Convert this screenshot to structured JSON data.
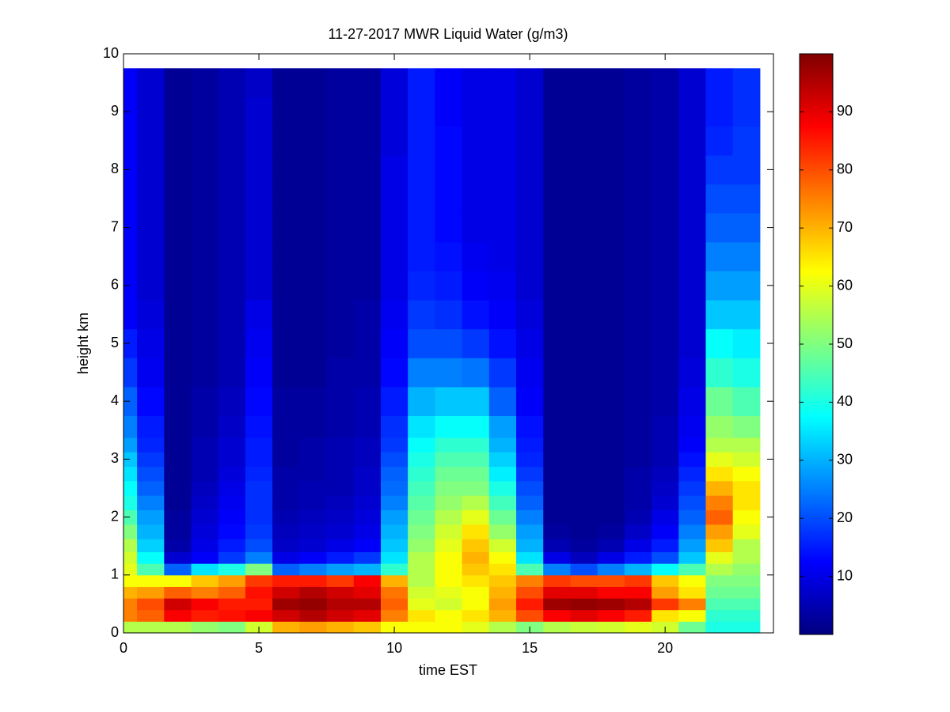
{
  "chart_data": {
    "type": "heatmap",
    "title": "11-27-2017 MWR Liquid Water (g/m3)",
    "xlabel": "time EST",
    "ylabel": "height km",
    "x": [
      0,
      1,
      2,
      3,
      4,
      5,
      6,
      7,
      8,
      9,
      10,
      11,
      12,
      13,
      14,
      15,
      16,
      17,
      18,
      19,
      20,
      21,
      22,
      23
    ],
    "y": [
      0.1,
      0.3,
      0.5,
      0.7,
      0.9,
      1.1,
      1.3,
      1.5,
      1.75,
      2,
      2.25,
      2.5,
      2.75,
      3,
      3.25,
      3.5,
      4,
      4.5,
      5,
      5.5,
      6,
      6.5,
      7,
      7.5,
      8,
      8.5,
      9,
      9.5
    ],
    "values": [
      [
        55,
        75,
        75,
        70,
        62,
        60,
        58,
        55,
        50,
        45,
        40,
        38,
        35,
        32,
        28,
        25,
        22,
        18,
        15,
        12,
        12,
        12,
        12,
        12,
        12,
        12,
        12,
        12
      ],
      [
        55,
        78,
        80,
        72,
        62,
        45,
        38,
        33,
        30,
        28,
        25,
        22,
        20,
        18,
        16,
        15,
        13,
        11,
        10,
        9,
        8,
        8,
        8,
        8,
        8,
        8,
        8,
        8
      ],
      [
        55,
        88,
        92,
        78,
        62,
        22,
        8,
        4,
        3,
        3,
        2,
        2,
        2,
        2,
        2,
        2,
        2,
        2,
        2,
        2,
        2,
        2,
        2,
        2,
        2,
        2,
        2,
        2
      ],
      [
        52,
        85,
        88,
        75,
        68,
        35,
        12,
        10,
        9,
        8,
        7,
        6,
        5,
        5,
        5,
        4,
        4,
        3,
        3,
        3,
        3,
        3,
        3,
        3,
        3,
        3,
        3,
        3
      ],
      [
        50,
        86,
        85,
        78,
        72,
        40,
        18,
        15,
        13,
        12,
        11,
        10,
        9,
        8,
        8,
        7,
        6,
        5,
        5,
        5,
        5,
        5,
        5,
        5,
        5,
        5,
        5,
        5
      ],
      [
        58,
        88,
        85,
        86,
        82,
        50,
        25,
        20,
        18,
        17,
        17,
        17,
        16,
        15,
        15,
        14,
        13,
        12,
        11,
        10,
        8,
        8,
        8,
        8,
        8,
        8,
        8,
        7
      ],
      [
        70,
        92,
        97,
        92,
        85,
        22,
        10,
        7,
        6,
        5,
        4,
        4,
        4,
        3,
        3,
        3,
        3,
        2,
        2,
        2,
        2,
        2,
        2,
        2,
        2,
        2,
        2,
        2
      ],
      [
        72,
        95,
        98,
        95,
        85,
        25,
        12,
        8,
        7,
        6,
        5,
        5,
        4,
        4,
        4,
        3,
        3,
        2,
        2,
        2,
        2,
        2,
        2,
        2,
        2,
        2,
        2,
        2
      ],
      [
        70,
        92,
        95,
        92,
        82,
        28,
        15,
        10,
        8,
        7,
        6,
        5,
        5,
        5,
        5,
        4,
        4,
        4,
        3,
        3,
        3,
        3,
        3,
        3,
        3,
        3,
        3,
        3
      ],
      [
        68,
        90,
        95,
        90,
        88,
        30,
        18,
        12,
        10,
        9,
        8,
        7,
        7,
        6,
        6,
        5,
        5,
        4,
        4,
        4,
        3,
        3,
        3,
        3,
        3,
        3,
        3,
        3
      ],
      [
        62,
        75,
        78,
        76,
        70,
        42,
        35,
        32,
        30,
        28,
        25,
        23,
        22,
        20,
        18,
        17,
        15,
        13,
        12,
        11,
        10,
        10,
        10,
        10,
        10,
        9,
        9,
        9
      ],
      [
        62,
        65,
        60,
        58,
        55,
        55,
        55,
        52,
        50,
        48,
        46,
        44,
        42,
        40,
        38,
        35,
        30,
        25,
        20,
        18,
        16,
        15,
        15,
        15,
        15,
        15,
        15,
        15
      ],
      [
        62,
        62,
        58,
        60,
        62,
        62,
        62,
        60,
        58,
        55,
        52,
        50,
        48,
        45,
        42,
        38,
        32,
        25,
        20,
        17,
        15,
        14,
        13,
        13,
        13,
        13,
        12,
        12
      ],
      [
        60,
        65,
        62,
        62,
        65,
        68,
        70,
        68,
        65,
        60,
        55,
        50,
        48,
        45,
        42,
        38,
        32,
        24,
        18,
        14,
        12,
        11,
        10,
        10,
        10,
        10,
        10,
        10
      ],
      [
        55,
        70,
        72,
        70,
        68,
        65,
        62,
        58,
        52,
        48,
        44,
        40,
        36,
        33,
        30,
        28,
        22,
        18,
        14,
        12,
        11,
        10,
        10,
        10,
        10,
        10,
        10,
        10
      ],
      [
        50,
        80,
        85,
        80,
        75,
        45,
        35,
        30,
        28,
        25,
        22,
        20,
        18,
        16,
        15,
        14,
        12,
        11,
        10,
        9,
        8,
        8,
        8,
        8,
        8,
        8,
        8,
        8
      ],
      [
        55,
        88,
        97,
        90,
        82,
        25,
        10,
        5,
        3,
        2,
        2,
        2,
        2,
        2,
        2,
        2,
        2,
        2,
        2,
        2,
        2,
        2,
        2,
        2,
        2,
        2,
        2,
        2
      ],
      [
        57,
        90,
        98,
        90,
        80,
        20,
        6,
        3,
        2,
        2,
        2,
        2,
        2,
        2,
        2,
        2,
        2,
        2,
        2,
        2,
        2,
        2,
        2,
        2,
        2,
        2,
        2,
        2
      ],
      [
        58,
        88,
        97,
        88,
        80,
        25,
        10,
        5,
        3,
        2,
        2,
        2,
        2,
        2,
        2,
        2,
        2,
        2,
        2,
        2,
        2,
        2,
        2,
        2,
        2,
        2,
        2,
        2
      ],
      [
        60,
        85,
        95,
        88,
        82,
        30,
        15,
        10,
        7,
        5,
        4,
        4,
        4,
        3,
        3,
        3,
        3,
        3,
        3,
        3,
        3,
        3,
        3,
        3,
        3,
        3,
        3,
        3
      ],
      [
        58,
        65,
        82,
        72,
        68,
        38,
        20,
        15,
        12,
        10,
        8,
        7,
        6,
        5,
        5,
        5,
        4,
        4,
        4,
        4,
        4,
        4,
        4,
        4,
        4,
        4,
        4,
        4
      ],
      [
        48,
        62,
        75,
        65,
        62,
        45,
        32,
        28,
        25,
        22,
        20,
        18,
        16,
        14,
        12,
        11,
        10,
        9,
        8,
        8,
        8,
        8,
        8,
        8,
        8,
        8,
        8,
        8
      ],
      [
        40,
        42,
        45,
        48,
        50,
        55,
        60,
        68,
        72,
        78,
        75,
        70,
        65,
        60,
        55,
        52,
        48,
        42,
        38,
        32,
        28,
        25,
        22,
        20,
        18,
        16,
        15,
        15
      ],
      [
        40,
        42,
        45,
        48,
        50,
        52,
        55,
        55,
        60,
        62,
        65,
        65,
        62,
        58,
        55,
        50,
        45,
        40,
        36,
        32,
        28,
        25,
        22,
        20,
        18,
        18,
        17,
        17
      ]
    ],
    "colormap": "jet",
    "xlim": [
      0,
      24
    ],
    "ylim": [
      0,
      10
    ],
    "xticks": [
      0,
      5,
      10,
      15,
      20
    ],
    "yticks": [
      0,
      1,
      2,
      3,
      4,
      5,
      6,
      7,
      8,
      9,
      10
    ],
    "clim": [
      0,
      100
    ],
    "cticks": [
      10,
      20,
      30,
      40,
      50,
      60,
      70,
      80,
      90
    ]
  }
}
